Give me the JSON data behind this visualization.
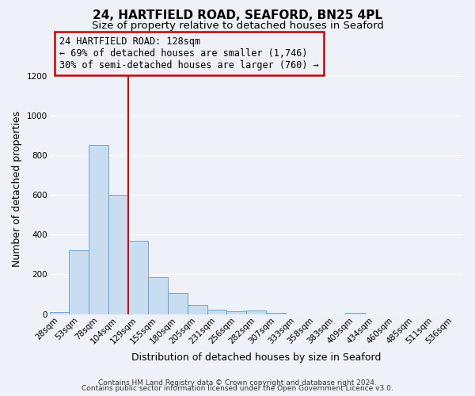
{
  "title": "24, HARTFIELD ROAD, SEAFORD, BN25 4PL",
  "subtitle": "Size of property relative to detached houses in Seaford",
  "xlabel": "Distribution of detached houses by size in Seaford",
  "ylabel": "Number of detached properties",
  "bar_labels": [
    "28sqm",
    "53sqm",
    "78sqm",
    "104sqm",
    "129sqm",
    "155sqm",
    "180sqm",
    "205sqm",
    "231sqm",
    "256sqm",
    "282sqm",
    "307sqm",
    "333sqm",
    "358sqm",
    "383sqm",
    "409sqm",
    "434sqm",
    "460sqm",
    "485sqm",
    "511sqm",
    "536sqm"
  ],
  "bar_values": [
    12,
    320,
    855,
    600,
    370,
    185,
    105,
    46,
    22,
    15,
    20,
    5,
    0,
    0,
    0,
    8,
    0,
    0,
    0,
    0,
    0
  ],
  "bar_color": "#c9ddf0",
  "bar_edge_color": "#5b9bd5",
  "vline_color": "#cc0000",
  "ylim": [
    0,
    1260
  ],
  "yticks": [
    0,
    200,
    400,
    600,
    800,
    1000,
    1200
  ],
  "annotation_title": "24 HARTFIELD ROAD: 128sqm",
  "annotation_line1": "← 69% of detached houses are smaller (1,746)",
  "annotation_line2": "30% of semi-detached houses are larger (760) →",
  "annotation_box_color": "#cc0000",
  "footer_line1": "Contains HM Land Registry data © Crown copyright and database right 2024.",
  "footer_line2": "Contains public sector information licensed under the Open Government Licence v3.0.",
  "background_color": "#eef2f8",
  "grid_color": "#ffffff",
  "title_fontsize": 11,
  "subtitle_fontsize": 9.5,
  "axis_label_fontsize": 9,
  "tick_fontsize": 7.5,
  "annotation_fontsize": 8.5,
  "footer_fontsize": 6.5
}
